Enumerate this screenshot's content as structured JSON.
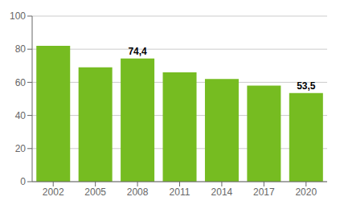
{
  "chart_data": {
    "type": "bar",
    "categories": [
      "2002",
      "2005",
      "2008",
      "2011",
      "2014",
      "2017",
      "2020"
    ],
    "values": [
      82.0,
      69.0,
      74.4,
      66.0,
      62.0,
      58.0,
      53.5
    ],
    "color": "#76BC21",
    "annotations": [
      {
        "x": "2008",
        "text": "74,4"
      },
      {
        "x": "2020",
        "text": "53,5"
      }
    ],
    "ylim": [
      0,
      100
    ],
    "yticks": [
      0,
      20,
      40,
      60,
      80,
      100
    ],
    "grid": true
  }
}
